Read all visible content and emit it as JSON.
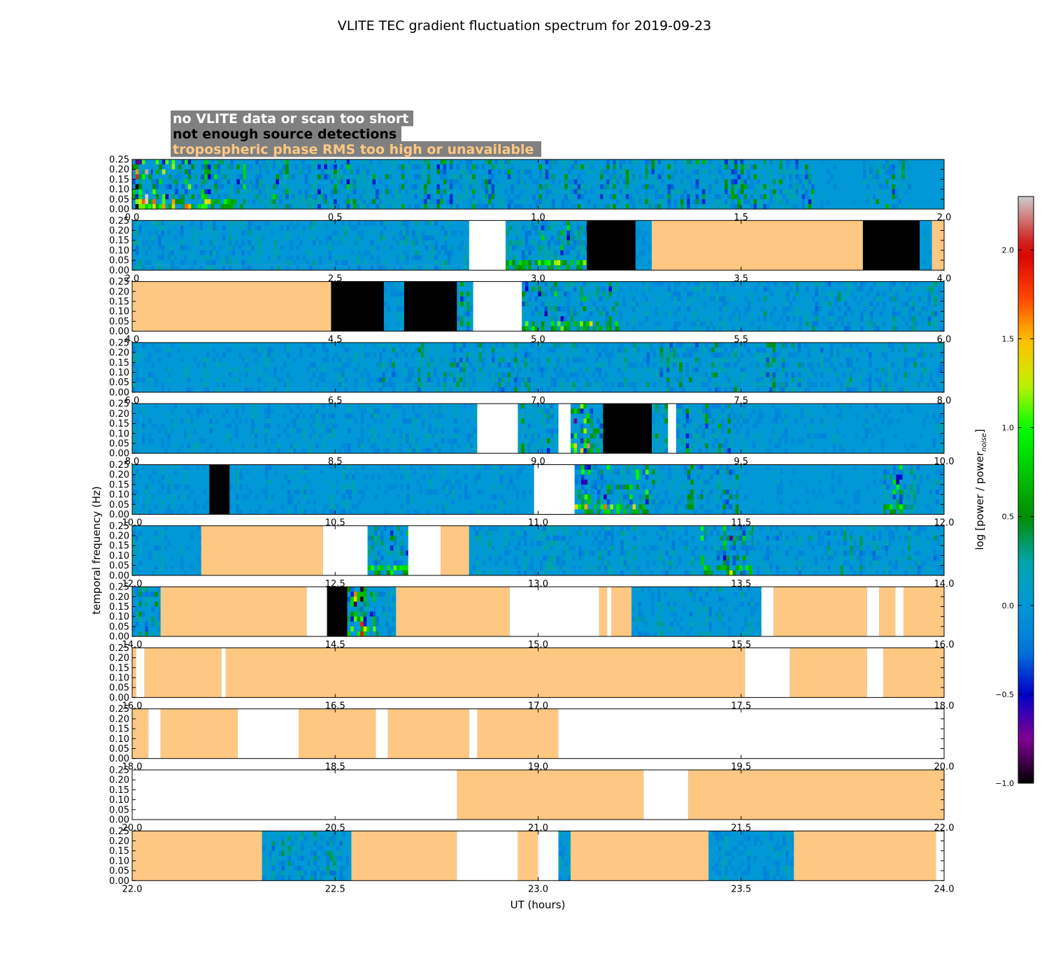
{
  "chart_data": {
    "type": "heatmap",
    "title": "VLITE TEC gradient fluctuation spectrum for 2019-09-23",
    "xlabel": "UT (hours)",
    "ylabel": "temporal frequency (Hz)",
    "ylim": [
      0,
      0.25
    ],
    "yticks": [
      "0.00",
      "0.05",
      "0.10",
      "0.15",
      "0.20",
      "0.25"
    ],
    "grid": false,
    "colorbar": {
      "label": "log [power / power",
      "label_sub": "noise",
      "label_end": "]",
      "range": [
        -1.0,
        2.3
      ],
      "ticks": [
        "−1.0",
        "−0.5",
        "0.0",
        "0.5",
        "1.0",
        "1.5",
        "2.0"
      ],
      "tick_values": [
        -1.0,
        -0.5,
        0.0,
        0.5,
        1.0,
        1.5,
        2.0
      ],
      "colormap": "spectral"
    },
    "legend": {
      "placement": "top-left",
      "background": "#808080",
      "entries": [
        {
          "label": "no VLITE data or scan too short",
          "color": "#ffffff"
        },
        {
          "label": "not enough source detections",
          "color": "#000000"
        },
        {
          "label": "tropospheric phase RMS too high or unavailable",
          "color": "#ffc882"
        }
      ]
    },
    "panels": [
      {
        "xlim": [
          0,
          2
        ],
        "xticks": [
          "0.0",
          "0.5",
          "1.0",
          "1.5",
          "2.0"
        ],
        "segments": [
          [
            "d",
            0.0,
            0.05,
            1.8
          ],
          [
            "d",
            0.05,
            0.17,
            0.9
          ],
          [
            "d",
            0.17,
            0.28,
            0.7
          ],
          [
            "d",
            0.28,
            0.33,
            0.3
          ],
          [
            "d",
            0.33,
            0.56,
            0.6
          ],
          [
            "d",
            0.56,
            0.97,
            0.5
          ],
          [
            "d",
            0.97,
            1.38,
            0.45
          ],
          [
            "d",
            1.38,
            1.68,
            0.5
          ],
          [
            "d",
            1.68,
            1.8,
            0.1
          ],
          [
            "d",
            1.8,
            1.92,
            0.5
          ],
          [
            "d",
            1.92,
            2.0,
            0.0
          ]
        ]
      },
      {
        "xlim": [
          2,
          4
        ],
        "xticks": [
          "2.0",
          "2.5",
          "3.0",
          "3.5",
          "4.0"
        ],
        "segments": [
          [
            "d",
            2.0,
            2.83,
            0.25
          ],
          [
            "w",
            2.83,
            2.92
          ],
          [
            "d",
            2.92,
            3.12,
            0.65
          ],
          [
            "b",
            3.12,
            3.24
          ],
          [
            "d",
            3.24,
            3.28,
            0.2
          ],
          [
            "t",
            3.28,
            3.8
          ],
          [
            "b",
            3.8,
            3.94
          ],
          [
            "d",
            3.94,
            3.97,
            0.1
          ],
          [
            "t",
            3.97,
            4.0
          ]
        ]
      },
      {
        "xlim": [
          4,
          6
        ],
        "xticks": [
          "4.0",
          "4.5",
          "5.0",
          "5.5",
          "6.0"
        ],
        "segments": [
          [
            "t",
            4.0,
            4.49
          ],
          [
            "b",
            4.49,
            4.62
          ],
          [
            "d",
            4.62,
            4.67,
            0.3
          ],
          [
            "b",
            4.67,
            4.8
          ],
          [
            "d",
            4.8,
            4.84,
            0.5
          ],
          [
            "w",
            4.84,
            4.96
          ],
          [
            "d",
            4.96,
            5.2,
            0.7
          ],
          [
            "d",
            5.2,
            5.5,
            0.2
          ],
          [
            "d",
            5.5,
            6.0,
            0.3
          ]
        ]
      },
      {
        "xlim": [
          6,
          8
        ],
        "xticks": [
          "6.0",
          "6.5",
          "7.0",
          "7.5",
          "8.0"
        ],
        "segments": [
          [
            "d",
            6.0,
            6.6,
            0.2
          ],
          [
            "d",
            6.6,
            6.95,
            0.35
          ],
          [
            "d",
            6.95,
            7.3,
            0.3
          ],
          [
            "d",
            7.3,
            7.6,
            0.4
          ],
          [
            "d",
            7.6,
            8.0,
            0.3
          ]
        ]
      },
      {
        "xlim": [
          8,
          10
        ],
        "xticks": [
          "8.0",
          "8.5",
          "9.0",
          "9.5",
          "10.0"
        ],
        "segments": [
          [
            "d",
            8.0,
            8.85,
            0.2
          ],
          [
            "w",
            8.85,
            8.95
          ],
          [
            "d",
            8.95,
            9.05,
            0.5
          ],
          [
            "w",
            9.05,
            9.08
          ],
          [
            "d",
            9.08,
            9.16,
            1.0
          ],
          [
            "b",
            9.16,
            9.28
          ],
          [
            "d",
            9.28,
            9.32,
            0.4
          ],
          [
            "w",
            9.32,
            9.34
          ],
          [
            "d",
            9.34,
            9.48,
            0.5
          ],
          [
            "d",
            9.48,
            10.0,
            0.15
          ]
        ]
      },
      {
        "xlim": [
          10,
          12
        ],
        "xticks": [
          "10.0",
          "10.5",
          "11.0",
          "11.5",
          "12.0"
        ],
        "segments": [
          [
            "d",
            10.0,
            10.19,
            0.2
          ],
          [
            "b",
            10.19,
            10.24
          ],
          [
            "d",
            10.24,
            10.99,
            0.2
          ],
          [
            "w",
            10.99,
            11.09
          ],
          [
            "d",
            11.09,
            11.28,
            0.8
          ],
          [
            "d",
            11.28,
            11.5,
            0.4
          ],
          [
            "d",
            11.5,
            11.85,
            0.1
          ],
          [
            "d",
            11.85,
            11.9,
            0.7
          ],
          [
            "d",
            11.9,
            12.0,
            0.3
          ]
        ]
      },
      {
        "xlim": [
          12,
          14
        ],
        "xticks": [
          "12.0",
          "12.5",
          "13.0",
          "13.5",
          "14.0"
        ],
        "segments": [
          [
            "d",
            12.0,
            12.17,
            0.2
          ],
          [
            "t",
            12.17,
            12.47
          ],
          [
            "w",
            12.47,
            12.58
          ],
          [
            "d",
            12.58,
            12.68,
            0.7
          ],
          [
            "w",
            12.68,
            12.76
          ],
          [
            "t",
            12.76,
            12.83
          ],
          [
            "d",
            12.83,
            13.4,
            0.25
          ],
          [
            "d",
            13.4,
            13.53,
            0.8
          ],
          [
            "d",
            13.53,
            14.0,
            0.3
          ]
        ]
      },
      {
        "xlim": [
          14,
          16
        ],
        "xticks": [
          "14.0",
          "14.5",
          "15.0",
          "15.5",
          "16.0"
        ],
        "segments": [
          [
            "d",
            14.0,
            14.07,
            0.4
          ],
          [
            "t",
            14.07,
            14.43
          ],
          [
            "w",
            14.43,
            14.48
          ],
          [
            "b",
            14.48,
            14.53
          ],
          [
            "d",
            14.53,
            14.6,
            1.4
          ],
          [
            "d",
            14.6,
            14.65,
            0.4
          ],
          [
            "t",
            14.65,
            14.93
          ],
          [
            "w",
            14.93,
            15.15
          ],
          [
            "t",
            15.15,
            15.17
          ],
          [
            "w",
            15.17,
            15.18
          ],
          [
            "t",
            15.18,
            15.23
          ],
          [
            "d",
            15.23,
            15.55,
            0.25
          ],
          [
            "w",
            15.55,
            15.58
          ],
          [
            "t",
            15.58,
            15.81
          ],
          [
            "w",
            15.81,
            15.84
          ],
          [
            "t",
            15.84,
            15.88
          ],
          [
            "w",
            15.88,
            15.9
          ],
          [
            "t",
            15.9,
            16.0
          ]
        ]
      },
      {
        "xlim": [
          16,
          18
        ],
        "xticks": [
          "16.0",
          "16.5",
          "17.0",
          "17.5",
          "18.0"
        ],
        "segments": [
          [
            "t",
            16.0,
            16.01
          ],
          [
            "w",
            16.01,
            16.03
          ],
          [
            "t",
            16.03,
            16.22
          ],
          [
            "w",
            16.22,
            16.23
          ],
          [
            "t",
            16.23,
            17.51
          ],
          [
            "w",
            17.51,
            17.62
          ],
          [
            "t",
            17.62,
            17.81
          ],
          [
            "w",
            17.81,
            17.85
          ],
          [
            "t",
            17.85,
            18.0
          ]
        ]
      },
      {
        "xlim": [
          18,
          20
        ],
        "xticks": [
          "18.0",
          "18.5",
          "19.0",
          "19.5",
          "20.0"
        ],
        "segments": [
          [
            "t",
            18.0,
            18.04
          ],
          [
            "w",
            18.04,
            18.07
          ],
          [
            "t",
            18.07,
            18.26
          ],
          [
            "w",
            18.26,
            18.41
          ],
          [
            "t",
            18.41,
            18.6
          ],
          [
            "w",
            18.6,
            18.63
          ],
          [
            "t",
            18.63,
            18.83
          ],
          [
            "w",
            18.83,
            18.85
          ],
          [
            "t",
            18.85,
            19.05
          ],
          [
            "w",
            19.05,
            20.0
          ]
        ]
      },
      {
        "xlim": [
          20,
          22
        ],
        "xticks": [
          "20.0",
          "20.5",
          "21.0",
          "21.5",
          "22.0"
        ],
        "segments": [
          [
            "w",
            20.0,
            20.8
          ],
          [
            "t",
            20.8,
            21.26
          ],
          [
            "w",
            21.26,
            21.37
          ],
          [
            "t",
            21.37,
            22.0
          ]
        ]
      },
      {
        "xlim": [
          22,
          24
        ],
        "xticks": [
          "22.0",
          "22.5",
          "23.0",
          "23.5",
          "24.0"
        ],
        "segments": [
          [
            "t",
            22.0,
            22.32
          ],
          [
            "d",
            22.32,
            22.54,
            0.3
          ],
          [
            "t",
            22.54,
            22.8
          ],
          [
            "w",
            22.8,
            22.95
          ],
          [
            "t",
            22.95,
            23.0
          ],
          [
            "w",
            23.0,
            23.05
          ],
          [
            "d",
            23.05,
            23.08,
            0.2
          ],
          [
            "t",
            23.08,
            23.42
          ],
          [
            "d",
            23.42,
            23.63,
            0.2
          ],
          [
            "t",
            23.63,
            23.98
          ],
          [
            "w",
            23.98,
            24.0
          ]
        ]
      }
    ]
  }
}
